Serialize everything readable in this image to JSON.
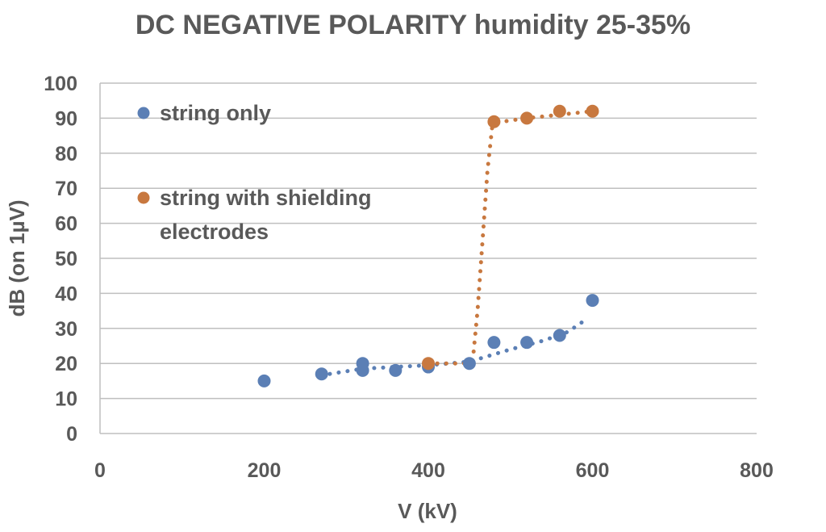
{
  "chart_data": {
    "type": "scatter",
    "title": "DC NEGATIVE POLARITY humidity  25-35%",
    "xlabel": "V (kV)",
    "ylabel": "dB (on 1µV)",
    "xlim": [
      0,
      800
    ],
    "ylim": [
      0,
      100
    ],
    "x_ticks": [
      0,
      200,
      400,
      600,
      800
    ],
    "y_ticks": [
      0,
      10,
      20,
      30,
      40,
      50,
      60,
      70,
      80,
      90,
      100
    ],
    "grid": "horizontal",
    "legend_position": "top-left inside",
    "series": [
      {
        "name": "string only",
        "color": "#5b7fb5",
        "points": [
          {
            "x": 200,
            "y": 15
          },
          {
            "x": 270,
            "y": 17
          },
          {
            "x": 320,
            "y": 18
          },
          {
            "x": 320,
            "y": 20
          },
          {
            "x": 360,
            "y": 18
          },
          {
            "x": 400,
            "y": 19
          },
          {
            "x": 450,
            "y": 20
          },
          {
            "x": 480,
            "y": 26
          },
          {
            "x": 520,
            "y": 26
          },
          {
            "x": 560,
            "y": 28
          },
          {
            "x": 600,
            "y": 38
          }
        ],
        "trendline": [
          {
            "x": 280,
            "y": 17
          },
          {
            "x": 320,
            "y": 18.5
          },
          {
            "x": 360,
            "y": 19
          },
          {
            "x": 400,
            "y": 19.5
          },
          {
            "x": 450,
            "y": 20.5
          },
          {
            "x": 500,
            "y": 24
          },
          {
            "x": 540,
            "y": 26.5
          },
          {
            "x": 570,
            "y": 29
          },
          {
            "x": 595,
            "y": 33
          }
        ]
      },
      {
        "name": "string with shielding electrodes",
        "legend_lines": [
          "string with shielding",
          "electrodes"
        ],
        "color": "#c8783f",
        "points": [
          {
            "x": 400,
            "y": 20
          },
          {
            "x": 480,
            "y": 89
          },
          {
            "x": 520,
            "y": 90
          },
          {
            "x": 560,
            "y": 92
          },
          {
            "x": 600,
            "y": 92
          }
        ],
        "trendline": [
          {
            "x": 400,
            "y": 20
          },
          {
            "x": 450,
            "y": 20
          },
          {
            "x": 455,
            "y": 23
          },
          {
            "x": 460,
            "y": 35
          },
          {
            "x": 466,
            "y": 55
          },
          {
            "x": 472,
            "y": 75
          },
          {
            "x": 478,
            "y": 88
          },
          {
            "x": 490,
            "y": 89
          },
          {
            "x": 520,
            "y": 90
          },
          {
            "x": 560,
            "y": 91
          },
          {
            "x": 600,
            "y": 92
          }
        ]
      }
    ]
  }
}
